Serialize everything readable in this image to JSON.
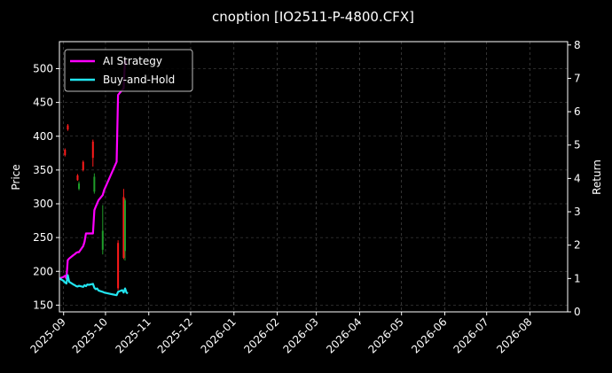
{
  "chart_data": {
    "type": "line",
    "title": "cnoption [IO2511-P-4800.CFX]",
    "ylabel_left": "Price",
    "ylabel_right": "Return",
    "xlabel": "",
    "left_ticks": [
      150,
      200,
      250,
      300,
      350,
      400,
      450,
      500
    ],
    "right_ticks": [
      0,
      1,
      2,
      3,
      4,
      5,
      6,
      7,
      8
    ],
    "x_ticks": [
      "2025-09",
      "2025-10",
      "2025-11",
      "2025-12",
      "2026-01",
      "2026-02",
      "2026-03",
      "2026-04",
      "2026-05",
      "2026-06",
      "2026-07",
      "2026-08"
    ],
    "ylim_left": [
      140,
      540
    ],
    "ylim_right": [
      0,
      8.1
    ],
    "xlim": [
      "2025-08-29",
      "2026-08-28"
    ],
    "grid": true,
    "legend_position": "top-left",
    "colors": {
      "background": "#000000",
      "ai_strategy": "#ff00ff",
      "buy_and_hold": "#22e5f0",
      "candle_up": "#ff1a1a",
      "candle_down": "#1f9e2a",
      "grid": "#555555"
    },
    "series": [
      {
        "name": "AI Strategy",
        "axis": "right",
        "points": [
          [
            "2025-08-29",
            1.0
          ],
          [
            "2025-09-01",
            1.05
          ],
          [
            "2025-09-02",
            1.08
          ],
          [
            "2025-09-03",
            1.0
          ],
          [
            "2025-09-04",
            1.55
          ],
          [
            "2025-09-05",
            1.6
          ],
          [
            "2025-09-08",
            1.7
          ],
          [
            "2025-09-09",
            1.73
          ],
          [
            "2025-09-10",
            1.77
          ],
          [
            "2025-09-11",
            1.79
          ],
          [
            "2025-09-12",
            1.79
          ],
          [
            "2025-09-15",
            1.97
          ],
          [
            "2025-09-16",
            2.1
          ],
          [
            "2025-09-17",
            2.35
          ],
          [
            "2025-09-18",
            2.35
          ],
          [
            "2025-09-19",
            2.35
          ],
          [
            "2025-09-22",
            2.35
          ],
          [
            "2025-09-23",
            3.05
          ],
          [
            "2025-09-24",
            3.15
          ],
          [
            "2025-09-25",
            3.25
          ],
          [
            "2025-09-26",
            3.35
          ],
          [
            "2025-09-29",
            3.5
          ],
          [
            "2025-09-30",
            3.65
          ],
          [
            "2025-10-09",
            4.5
          ],
          [
            "2025-10-10",
            6.5
          ],
          [
            "2025-10-13",
            6.65
          ],
          [
            "2025-10-14",
            6.7
          ],
          [
            "2025-10-15",
            7.55
          ],
          [
            "2025-10-16",
            7.4
          ]
        ]
      },
      {
        "name": "Buy-and-Hold",
        "axis": "right",
        "points": [
          [
            "2025-08-29",
            1.0
          ],
          [
            "2025-09-01",
            0.93
          ],
          [
            "2025-09-02",
            0.88
          ],
          [
            "2025-09-03",
            0.85
          ],
          [
            "2025-09-04",
            1.1
          ],
          [
            "2025-09-05",
            0.9
          ],
          [
            "2025-09-08",
            0.82
          ],
          [
            "2025-09-09",
            0.8
          ],
          [
            "2025-09-10",
            0.77
          ],
          [
            "2025-09-11",
            0.76
          ],
          [
            "2025-09-12",
            0.78
          ],
          [
            "2025-09-15",
            0.75
          ],
          [
            "2025-09-16",
            0.8
          ],
          [
            "2025-09-17",
            0.77
          ],
          [
            "2025-09-18",
            0.82
          ],
          [
            "2025-09-19",
            0.81
          ],
          [
            "2025-09-22",
            0.84
          ],
          [
            "2025-09-23",
            0.72
          ],
          [
            "2025-09-24",
            0.68
          ],
          [
            "2025-09-25",
            0.7
          ],
          [
            "2025-09-26",
            0.64
          ],
          [
            "2025-09-29",
            0.6
          ],
          [
            "2025-09-30",
            0.58
          ],
          [
            "2025-10-09",
            0.5
          ],
          [
            "2025-10-10",
            0.6
          ],
          [
            "2025-10-13",
            0.65
          ],
          [
            "2025-10-14",
            0.58
          ],
          [
            "2025-10-15",
            0.7
          ],
          [
            "2025-10-16",
            0.58
          ],
          [
            "2025-10-17",
            0.55
          ]
        ]
      },
      {
        "name": "Price",
        "type": "candlestick",
        "axis": "left",
        "points": [
          {
            "date": "2025-09-02",
            "open": 372,
            "close": 380,
            "low": 370,
            "high": 382
          },
          {
            "date": "2025-09-04",
            "open": 410,
            "close": 416,
            "low": 408,
            "high": 418
          },
          {
            "date": "2025-09-11",
            "open": 335,
            "close": 342,
            "low": 334,
            "high": 344
          },
          {
            "date": "2025-09-12",
            "open": 330,
            "close": 322,
            "low": 320,
            "high": 333
          },
          {
            "date": "2025-09-15",
            "open": 350,
            "close": 362,
            "low": 348,
            "high": 364
          },
          {
            "date": "2025-09-22",
            "open": 368,
            "close": 392,
            "low": 355,
            "high": 395
          },
          {
            "date": "2025-09-23",
            "open": 340,
            "close": 318,
            "low": 315,
            "high": 345
          },
          {
            "date": "2025-09-29",
            "open": 260,
            "close": 232,
            "low": 225,
            "high": 298
          },
          {
            "date": "2025-10-10",
            "open": 175,
            "close": 242,
            "low": 172,
            "high": 246
          },
          {
            "date": "2025-10-14",
            "open": 220,
            "close": 310,
            "low": 218,
            "high": 322
          },
          {
            "date": "2025-10-15",
            "open": 305,
            "close": 230,
            "low": 216,
            "high": 308
          }
        ]
      }
    ]
  }
}
